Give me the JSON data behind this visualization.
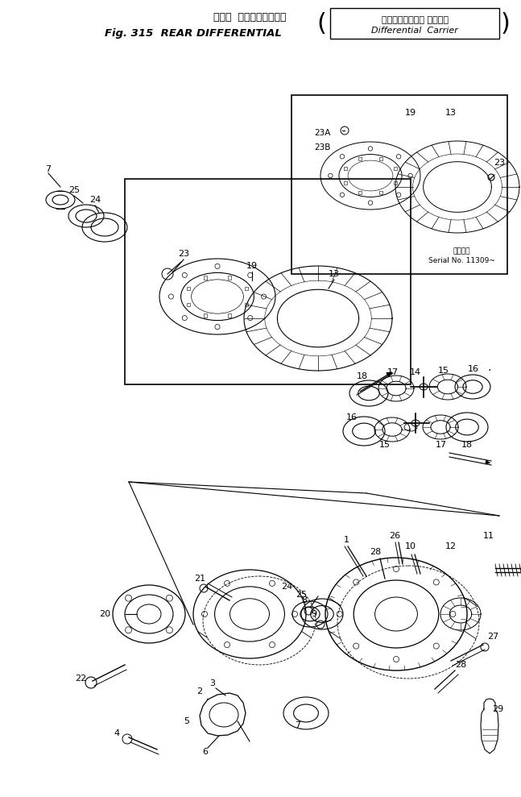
{
  "title_line1": "リヤー  デファレンシャル",
  "title_line2": "Fig. 315  REAR DIFFERENTIAL",
  "title_box1": "デファレンシャル キャリア",
  "title_box2": "Differential  Carrier",
  "serial_label": "適用号番",
  "serial_value": "Serial No. 11309~",
  "bg_color": "#ffffff",
  "lc": "#000000",
  "fig_w": 6.47,
  "fig_h": 9.89
}
